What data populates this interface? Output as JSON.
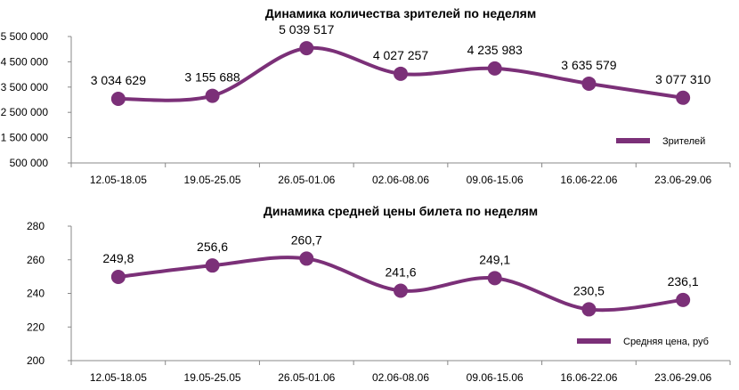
{
  "colors": {
    "series": "#7B3078",
    "axis": "#888888"
  },
  "chart_data": [
    {
      "type": "line",
      "title": "Динамика количества зрителей по неделям",
      "categories": [
        "12.05-18.05",
        "19.05-25.05",
        "26.05-01.06",
        "02.06-08.06",
        "09.06-15.06",
        "16.06-22.06",
        "23.06-29.06"
      ],
      "series": [
        {
          "name": "Зрителей",
          "values": [
            3034629,
            3155688,
            5039517,
            4027257,
            4235983,
            3635579,
            3077310
          ],
          "labels": [
            "3 034 629",
            "3 155 688",
            "5 039 517",
            "4 027 257",
            "4 235 983",
            "3 635 579",
            "3 077 310"
          ]
        }
      ],
      "yticks": [
        "5 500 000",
        "4 500 000",
        "3 500 000",
        "2 500 000",
        "1 500 000",
        "500 000"
      ],
      "ytick_values": [
        5500000,
        4500000,
        3500000,
        2500000,
        1500000,
        500000
      ],
      "ylim": [
        500000,
        5500000
      ],
      "legend": "bottom-right",
      "grid": false
    },
    {
      "type": "line",
      "title": "Динамика средней цены билета по неделям",
      "categories": [
        "12.05-18.05",
        "19.05-25.05",
        "26.05-01.06",
        "02.06-08.06",
        "09.06-15.06",
        "16.06-22.06",
        "23.06-29.06"
      ],
      "series": [
        {
          "name": "Средняя цена, руб",
          "values": [
            249.8,
            256.6,
            260.7,
            241.6,
            249.1,
            230.5,
            236.1
          ],
          "labels": [
            "249,8",
            "256,6",
            "260,7",
            "241,6",
            "249,1",
            "230,5",
            "236,1"
          ]
        }
      ],
      "yticks": [
        "280",
        "260",
        "240",
        "220",
        "200"
      ],
      "ytick_values": [
        280,
        260,
        240,
        220,
        200
      ],
      "ylim": [
        200,
        280
      ],
      "legend": "bottom-right",
      "grid": false
    }
  ]
}
